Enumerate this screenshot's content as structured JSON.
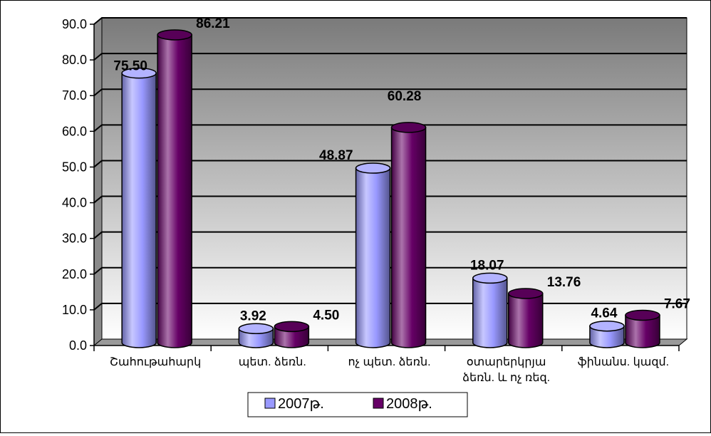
{
  "chart_data": {
    "type": "bar",
    "style": "3d-cylinder",
    "categories": [
      "Շահութահարկ",
      "պետ. ձեռն.",
      "ոչ պետ. ձեռն.",
      "օտարերկրյա ձեռն. և ոչ ռեզ.",
      "ֆինանս. կազմ."
    ],
    "category_lines": [
      [
        "Շահութահարկ"
      ],
      [
        "պետ. ձեռն."
      ],
      [
        "ոչ պետ. ձեռն."
      ],
      [
        "օտարերկրյա",
        "ձեռն. և ոչ ռեզ."
      ],
      [
        "ֆինանս. կազմ."
      ]
    ],
    "series": [
      {
        "name": "2007թ.",
        "values": [
          75.5,
          3.92,
          48.87,
          18.07,
          4.64
        ],
        "labels": [
          "75.50",
          "3.92",
          "48.87",
          "18.07",
          "4.64"
        ],
        "color": "#9999ff"
      },
      {
        "name": "2008թ.",
        "values": [
          86.21,
          4.5,
          60.28,
          13.76,
          7.67
        ],
        "labels": [
          "86.21",
          "4.50",
          "60.28",
          "13.76",
          "7.67"
        ],
        "color": "#660066"
      }
    ],
    "ylim": [
      0,
      90
    ],
    "yticks": [
      "0.0",
      "10.0",
      "20.0",
      "30.0",
      "40.0",
      "50.0",
      "60.0",
      "70.0",
      "80.0",
      "90.0"
    ],
    "grid": true,
    "legend_position": "bottom",
    "wall_gradient": [
      "#7a7a7a",
      "#ffffff"
    ],
    "floor_color": "#9a9a9a"
  }
}
